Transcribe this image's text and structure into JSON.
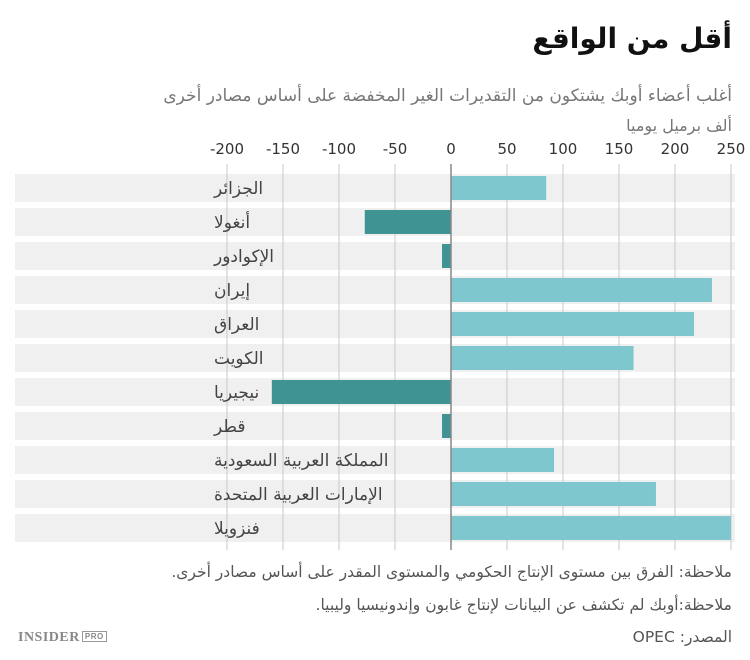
{
  "title": "أقل من الواقع",
  "subtitle": "أغلب أعضاء أوبك يشتكون من التقديرات الغير المخفضة على أساس مصادر أخرى",
  "unit_label": "ألف برميل يوميا",
  "notes": [
    "ملاحظة: الفرق بين مستوى الإنتاج الحكومي والمستوى المقدر على أساس مصادر أخرى.",
    "ملاحظة:أوبك لم تكشف عن البيانات لإنتاج غابون وإندونيسيا وليبيا."
  ],
  "source": "المصدر: OPEC",
  "logo": {
    "main": "INSIDER",
    "badge": "PRO"
  },
  "colors": {
    "positive_bar": "#7ec7cf",
    "negative_bar": "#3f9393",
    "row_band": "#f0f0f0",
    "gridline": "#c8c8c8",
    "zero_line": "#888888"
  },
  "chart_data": {
    "type": "bar",
    "orientation": "horizontal",
    "title": "أقل من الواقع",
    "subtitle": "أغلب أعضاء أوبك يشتكون من التقديرات الغير المخفضة على أساس مصادر أخرى",
    "xlabel": "ألف برميل يوميا",
    "xlim": [
      -200,
      250
    ],
    "xticks": [
      -200,
      -150,
      -100,
      -50,
      0,
      50,
      100,
      150,
      200,
      250
    ],
    "grid": true,
    "categories": [
      "الجزائر",
      "أنغولا",
      "الإكوادور",
      "إيران",
      "العراق",
      "الكويت",
      "نيجيريا",
      "قطر",
      "المملكة العربية السعودية",
      "الإمارات العربية المتحدة",
      "فنزويلا"
    ],
    "values": [
      85,
      -77,
      -8,
      233,
      217,
      163,
      -160,
      -8,
      92,
      183,
      250
    ]
  }
}
